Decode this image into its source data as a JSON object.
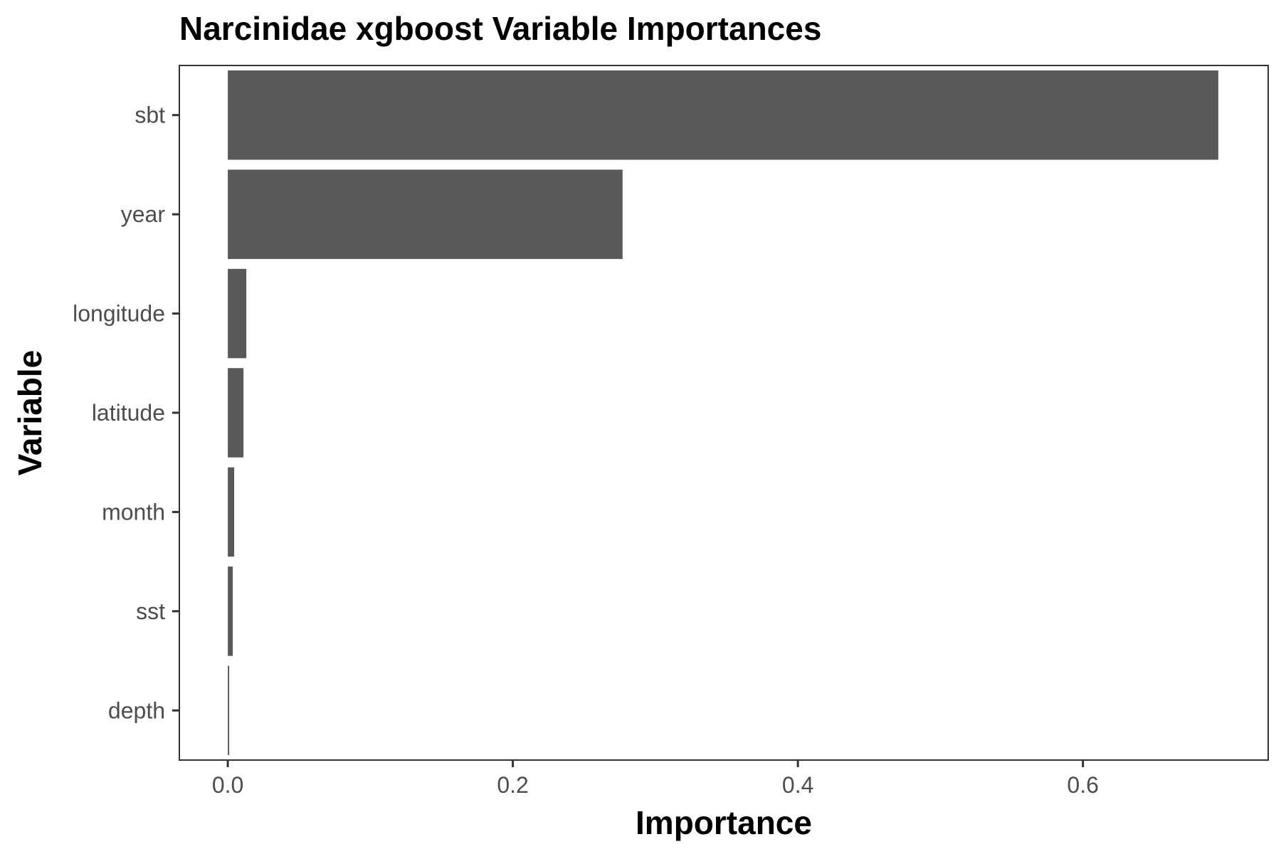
{
  "chart_data": {
    "type": "bar",
    "orientation": "horizontal",
    "title": "Narcinidae xgboost Variable Importances",
    "xlabel": "Importance",
    "ylabel": "Variable",
    "categories": [
      "sbt",
      "year",
      "longitude",
      "latitude",
      "month",
      "sst",
      "depth"
    ],
    "values": [
      0.695,
      0.277,
      0.013,
      0.011,
      0.0045,
      0.0035,
      0.001
    ],
    "xlim": [
      -0.034,
      0.73
    ],
    "xticks": [
      0.0,
      0.2,
      0.4,
      0.6
    ],
    "xtick_labels": [
      "0.0",
      "0.2",
      "0.4",
      "0.6"
    ],
    "grid": false,
    "legend": "none",
    "bar_color": "#595959",
    "panel_border_color": "#333333"
  }
}
